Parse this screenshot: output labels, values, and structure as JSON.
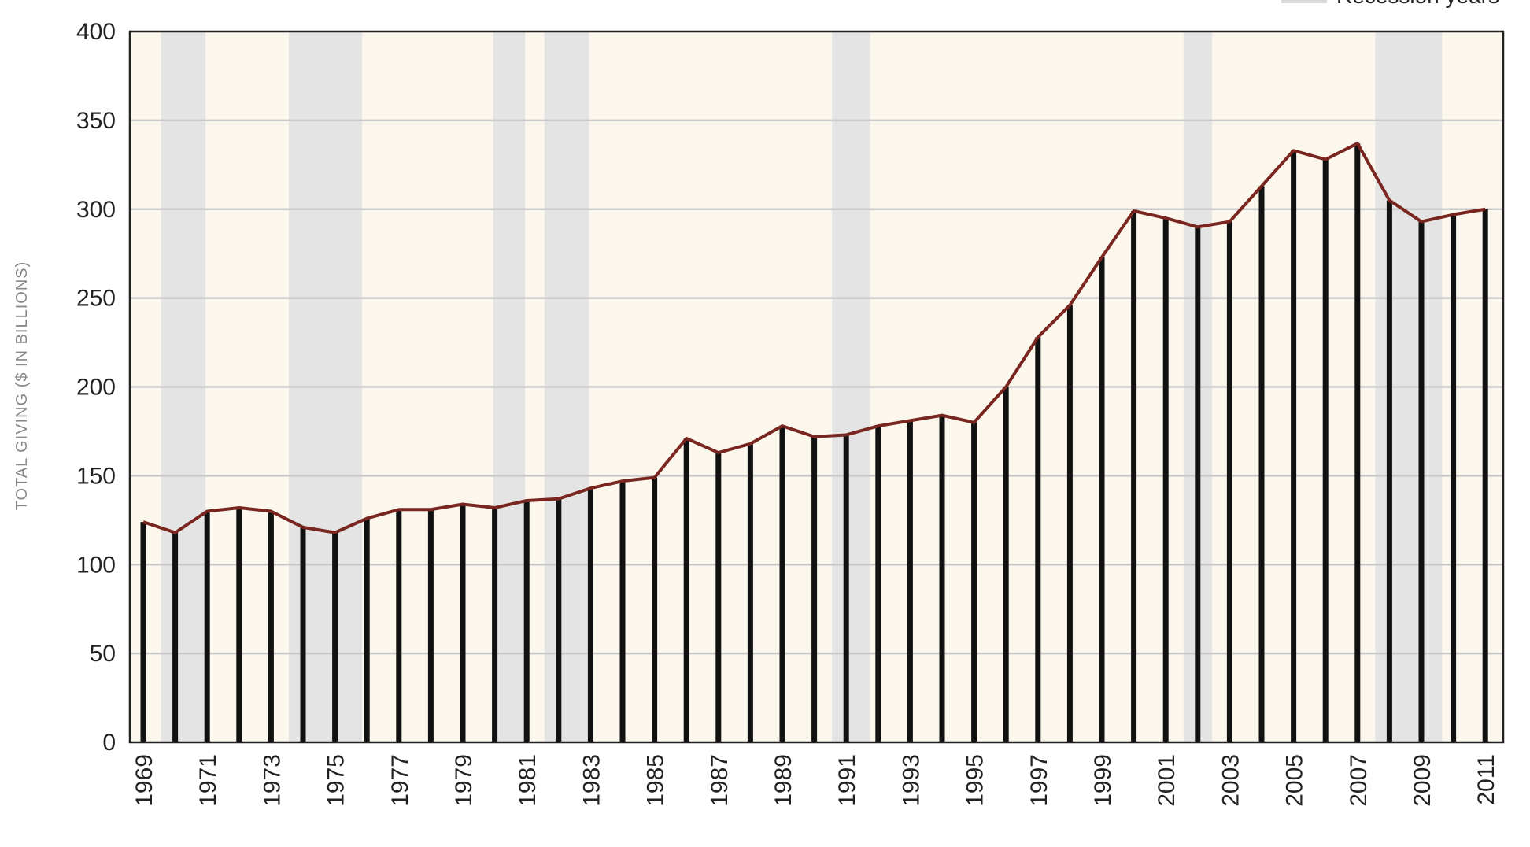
{
  "chart_data": {
    "type": "line",
    "title": "",
    "xlabel": "",
    "ylabel": "TOTAL GIVING ($ IN BILLIONS)",
    "legend": {
      "label": "Recession years",
      "placement": "top-right"
    },
    "x": [
      1969,
      1970,
      1971,
      1972,
      1973,
      1974,
      1975,
      1976,
      1977,
      1978,
      1979,
      1980,
      1981,
      1982,
      1983,
      1984,
      1985,
      1986,
      1987,
      1988,
      1989,
      1990,
      1991,
      1992,
      1993,
      1994,
      1995,
      1996,
      1997,
      1998,
      1999,
      2000,
      2001,
      2002,
      2003,
      2004,
      2005,
      2006,
      2007,
      2008,
      2009,
      2010,
      2011
    ],
    "x_tick_labels": [
      "1969",
      "1971",
      "1973",
      "1975",
      "1977",
      "1979",
      "1981",
      "1983",
      "1985",
      "1987",
      "1989",
      "1991",
      "1993",
      "1995",
      "1997",
      "1999",
      "2001",
      "2003",
      "2005",
      "2007",
      "2009",
      "2011"
    ],
    "y_ticks": [
      0,
      50,
      100,
      150,
      200,
      250,
      300,
      350,
      400
    ],
    "ylim": [
      0,
      400
    ],
    "grid": true,
    "series": [
      {
        "values": [
          124,
          118,
          130,
          132,
          130,
          121,
          118,
          126,
          131,
          131,
          134,
          132,
          136,
          137,
          143,
          147,
          149,
          171,
          163,
          168,
          178,
          172,
          173,
          178,
          181,
          184,
          180,
          200,
          228,
          246,
          273,
          299,
          295,
          290,
          293,
          313,
          333,
          328,
          337,
          305,
          293,
          297,
          300
        ]
      }
    ],
    "recession_periods": [
      [
        1970,
        1970.9
      ],
      [
        1974,
        1975.8
      ],
      [
        1980.4,
        1980.9
      ],
      [
        1982,
        1982.9
      ],
      [
        1991,
        1991.7
      ],
      [
        2002,
        2002.4
      ],
      [
        2008,
        2009.6
      ]
    ],
    "colors": {
      "plot_background": "#fbf7ec",
      "recession_band": "#e4e4e4",
      "bar": "#111111",
      "line": "#7a2620",
      "grid": "#c9c9c9",
      "axis_text": "#222222",
      "ylabel_text": "#888888",
      "legend_swatch": "#d8d8d8"
    }
  }
}
